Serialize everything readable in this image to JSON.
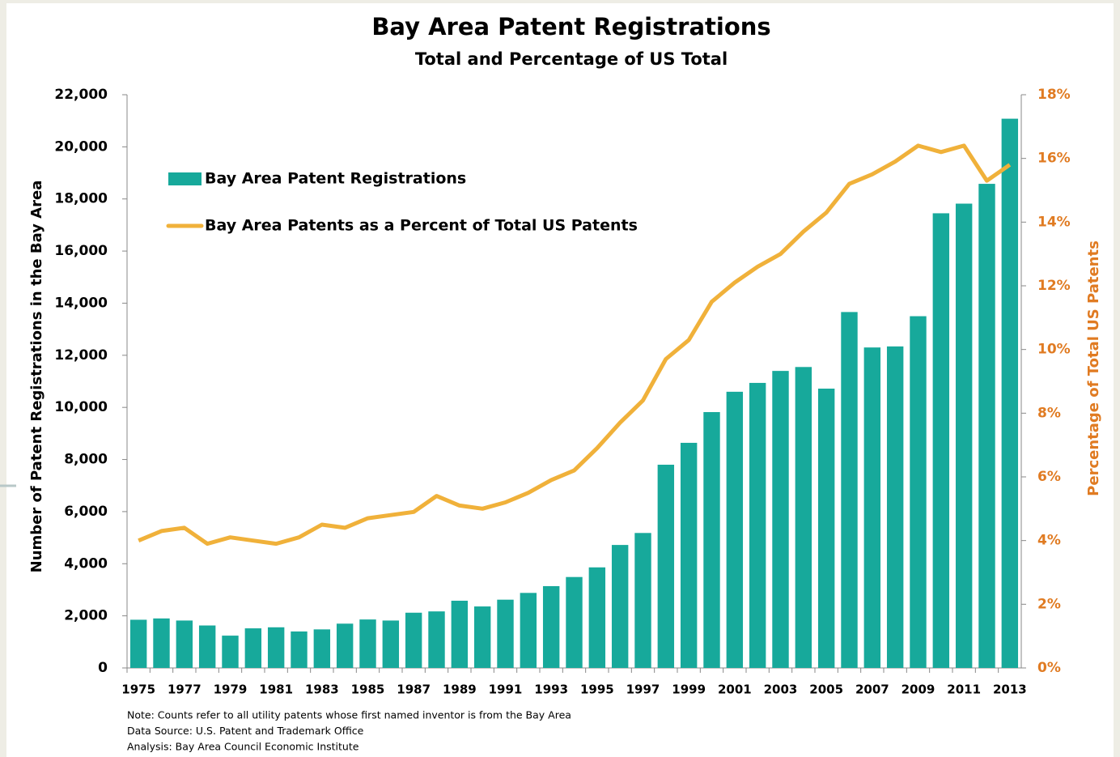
{
  "chart_data": {
    "type": "bar",
    "title": "Bay Area Patent Registrations",
    "subtitle": "Total and Percentage of US Total",
    "y_label": "Number of Patent Registrations in the Bay Area",
    "y2_label": "Percentage of Total US Patents",
    "notes": [
      "Note: Counts refer to all utility patents whose first named inventor is from the Bay Area",
      "Data Source: U.S. Patent and Trademark Office",
      "Analysis: Bay Area Council Economic Institute"
    ],
    "categories": [
      "1975",
      null,
      "1977",
      null,
      "1979",
      null,
      "1981",
      null,
      "1983",
      null,
      "1985",
      null,
      "1987",
      null,
      "1989",
      null,
      "1991",
      null,
      "1993",
      null,
      "1995",
      null,
      "1997",
      null,
      "1999",
      null,
      "2001",
      null,
      "2003",
      null,
      "2005",
      null,
      "2007",
      null,
      "2009",
      null,
      "2011",
      null,
      "2013"
    ],
    "series": [
      {
        "name": "Bay Area Patent Registrations",
        "type": "bar",
        "color": "#17a99b",
        "axis": "y",
        "values": [
          1850,
          1900,
          1820,
          1630,
          1240,
          1520,
          1560,
          1400,
          1480,
          1700,
          1860,
          1820,
          2120,
          2170,
          2580,
          2360,
          2620,
          2880,
          3140,
          3490,
          3860,
          4720,
          5180,
          7800,
          8640,
          9820,
          10600,
          10940,
          11400,
          11550,
          10720,
          13660,
          12300,
          12340,
          13500,
          17450,
          17820,
          18580,
          21080
        ]
      },
      {
        "name": "Bay Area Patents as a Percent of Total US Patents",
        "type": "line",
        "color": "#f0b13a",
        "axis": "y2",
        "values": [
          4.0,
          4.3,
          4.4,
          3.9,
          4.1,
          4.0,
          3.9,
          4.1,
          4.5,
          4.4,
          4.7,
          4.8,
          4.9,
          5.4,
          5.1,
          5.0,
          5.2,
          5.5,
          5.9,
          6.2,
          6.9,
          7.7,
          8.4,
          9.7,
          10.3,
          11.5,
          12.1,
          12.6,
          13.0,
          13.7,
          14.3,
          15.2,
          15.5,
          15.9,
          16.4,
          16.2,
          16.4,
          15.3,
          15.8
        ]
      }
    ],
    "ylim": [
      0,
      22000
    ],
    "yticks": [
      0,
      {
        "value": 2000,
        "label": "2,000"
      },
      {
        "value": 4000,
        "label": "4,000"
      },
      {
        "value": 6000,
        "label": "6,000"
      },
      {
        "value": 8000,
        "label": "8,000"
      },
      {
        "value": 10000,
        "label": "10,000"
      },
      {
        "value": 12000,
        "label": "12,000"
      },
      {
        "value": 14000,
        "label": "14,000"
      },
      {
        "value": 16000,
        "label": "16,000"
      },
      {
        "value": 18000,
        "label": "18,000"
      },
      {
        "value": 20000,
        "label": "20,000"
      },
      {
        "value": 22000,
        "label": "22,000"
      }
    ],
    "y2lim": [
      0,
      18
    ],
    "y2ticks": [
      {
        "value": 0,
        "label": "0%"
      },
      {
        "value": 2,
        "label": "2%"
      },
      {
        "value": 4,
        "label": "4%"
      },
      {
        "value": 6,
        "label": "6%"
      },
      {
        "value": 8,
        "label": "8%"
      },
      {
        "value": 10,
        "label": "10%"
      },
      {
        "value": 12,
        "label": "12%"
      },
      {
        "value": 14,
        "label": "14%"
      },
      {
        "value": 16,
        "label": "16%"
      },
      {
        "value": 18,
        "label": "18%"
      }
    ],
    "grid": false,
    "legend": "upper-left"
  }
}
